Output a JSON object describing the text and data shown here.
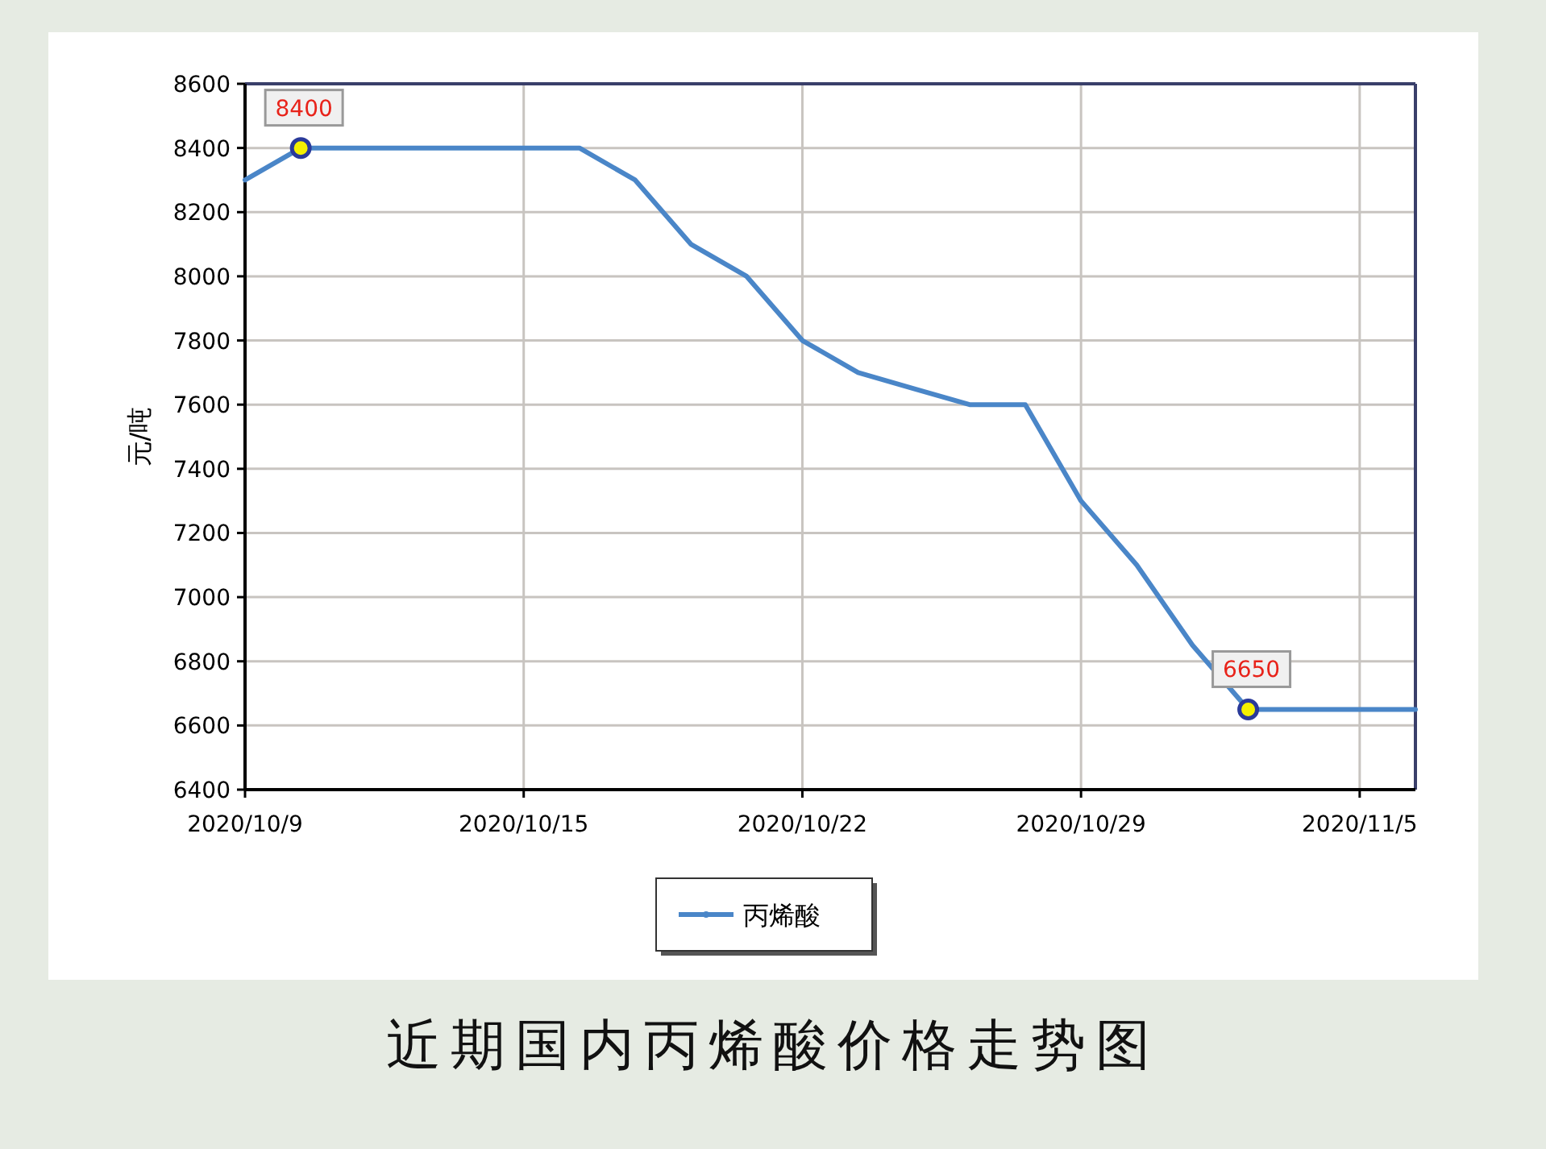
{
  "chart_data": {
    "type": "line",
    "title": "近期国内丙烯酸价格走势图",
    "ylabel": "元/吨",
    "categories": [
      "2020/10/9",
      null,
      null,
      null,
      null,
      "2020/10/15",
      null,
      null,
      null,
      null,
      "2020/10/22",
      null,
      null,
      null,
      null,
      "2020/10/29",
      null,
      null,
      null,
      null,
      "2020/11/5",
      null
    ],
    "series": [
      {
        "name": "丙烯酸",
        "color": "#4a86c8",
        "values": [
          8300,
          8400,
          8400,
          8400,
          8400,
          8400,
          8400,
          8300,
          8100,
          8000,
          7800,
          7700,
          7650,
          7600,
          7600,
          7300,
          7100,
          6850,
          6650,
          6650,
          6650,
          6650
        ],
        "value_labels": [
          null,
          "8400",
          null,
          null,
          null,
          null,
          null,
          null,
          null,
          null,
          null,
          null,
          null,
          null,
          null,
          null,
          null,
          null,
          "6650",
          null,
          null,
          null
        ]
      }
    ],
    "ylim": [
      6400,
      8600
    ],
    "yticks": [
      6400,
      6600,
      6800,
      7000,
      7200,
      7400,
      7600,
      7800,
      8000,
      8200,
      8400,
      8600
    ],
    "grid": true,
    "legend": "bottom"
  }
}
